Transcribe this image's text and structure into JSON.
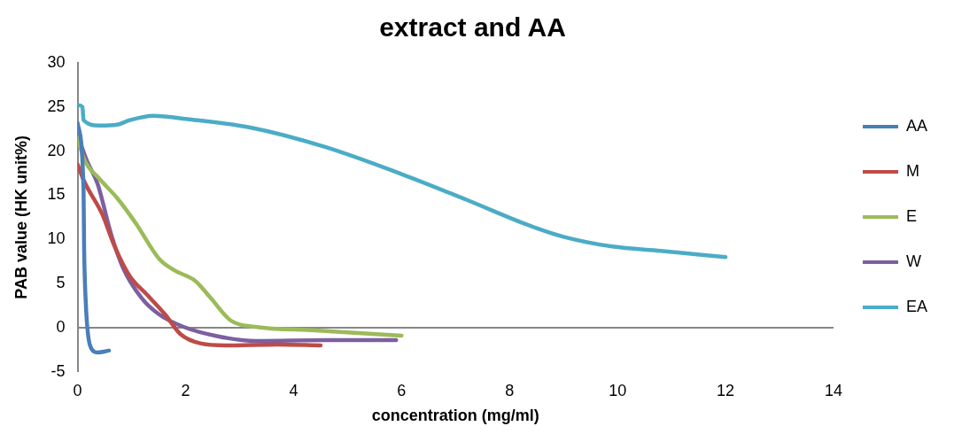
{
  "chart_data": {
    "type": "line",
    "title": "extract and AA",
    "xlabel": "concentration (mg/ml)",
    "ylabel": "PAB value (HK unit%)",
    "xlim": [
      0,
      14
    ],
    "xticks": [
      0,
      2,
      4,
      6,
      8,
      10,
      12,
      14
    ],
    "ylim": [
      -5,
      30
    ],
    "yticks": [
      -5,
      0,
      5,
      10,
      15,
      20,
      25,
      30
    ],
    "legend": "right",
    "marker": "none",
    "line_style": "solid",
    "series": [
      {
        "name": "AA",
        "color": "#4a7ebb",
        "x": [
          0,
          0.11,
          0.12,
          0.15,
          0.23,
          0.37,
          0.58
        ],
        "values": [
          23.2,
          15.6,
          9.3,
          3,
          -2,
          -2.8,
          -2.6
        ]
      },
      {
        "name": "M",
        "color": "#be4b48",
        "x": [
          0,
          0.12,
          0.46,
          0.68,
          0.96,
          1.29,
          1.62,
          1.9,
          2.29,
          2.73,
          3.7,
          4.5
        ],
        "values": [
          18.5,
          16.6,
          12.8,
          9.3,
          5.9,
          3.7,
          1.5,
          -0.7,
          -1.8,
          -2,
          -1.9,
          -2
        ]
      },
      {
        "name": "E",
        "color": "#9bbb59",
        "x": [
          0,
          0.12,
          0.4,
          0.73,
          1.07,
          1.51,
          1.79,
          2.18,
          2.46,
          2.84,
          3.29,
          4.4,
          6
        ],
        "values": [
          21.6,
          19.1,
          16.9,
          14.7,
          11.9,
          7.8,
          6.5,
          5.3,
          3.4,
          0.8,
          0.1,
          -0.3,
          -0.9
        ]
      },
      {
        "name": "W",
        "color": "#7d5fa0",
        "x": [
          0,
          0.18,
          0.37,
          0.62,
          0.84,
          1.18,
          1.51,
          1.96,
          2.62,
          3.3,
          4.6,
          5.9
        ],
        "values": [
          21.8,
          18.8,
          16.3,
          10.6,
          6.8,
          3.4,
          1.5,
          0.1,
          -1,
          -1.5,
          -1.4,
          -1.4
        ]
      },
      {
        "name": "EA",
        "color": "#4bacc6",
        "x": [
          0,
          0.09,
          0.11,
          0.4,
          0.73,
          0.96,
          1.4,
          2.07,
          3.18,
          4.57,
          6,
          7.2,
          8.4,
          9,
          9.9,
          10.8,
          12
        ],
        "values": [
          25.2,
          25,
          23.5,
          22.9,
          23,
          23.5,
          24,
          23.6,
          22.7,
          20.5,
          17.4,
          14.5,
          11.5,
          10.3,
          9.2,
          8.7,
          8
        ]
      }
    ]
  }
}
